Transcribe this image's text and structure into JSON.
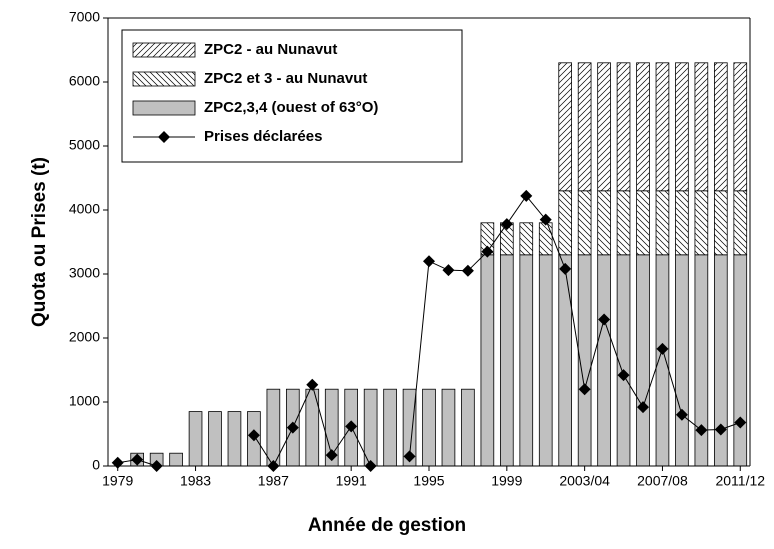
{
  "chart_data": {
    "type": "bar",
    "x_label": "Année de gestion",
    "y_label": "Quota ou Prises (t)",
    "categories": [
      "1979",
      null,
      null,
      null,
      "1983",
      null,
      null,
      null,
      "1987",
      null,
      null,
      null,
      "1991",
      null,
      null,
      null,
      "1995",
      null,
      null,
      null,
      "1999",
      null,
      null,
      null,
      "2003/04",
      null,
      null,
      null,
      "2007/08",
      null,
      null,
      null,
      "2011/12"
    ],
    "ylim": [
      0,
      7000
    ],
    "yticks": [
      0,
      1000,
      2000,
      3000,
      4000,
      5000,
      6000,
      7000
    ],
    "stacked": true,
    "series": [
      {
        "name": "ZPC2,3,4 (ouest of 63°O)",
        "color": "#c0c0c0",
        "pattern": "solid",
        "values": [
          0,
          200,
          200,
          200,
          850,
          850,
          850,
          850,
          1200,
          1200,
          1200,
          1200,
          1200,
          1200,
          1200,
          1200,
          1200,
          1200,
          1200,
          3300,
          3300,
          3300,
          3300,
          3300,
          3300,
          3300,
          3300,
          3300,
          3300,
          3300,
          3300,
          3300,
          3300
        ]
      },
      {
        "name": "ZPC2 et 3 - au Nunavut",
        "color": "#ffffff",
        "pattern": "backslash",
        "values": [
          0,
          0,
          0,
          0,
          0,
          0,
          0,
          0,
          0,
          0,
          0,
          0,
          0,
          0,
          0,
          0,
          0,
          0,
          0,
          500,
          500,
          500,
          500,
          1000,
          1000,
          1000,
          1000,
          1000,
          1000,
          1000,
          1000,
          1000,
          1000
        ]
      },
      {
        "name": "ZPC2 - au Nunavut",
        "color": "#ffffff",
        "pattern": "slash",
        "values": [
          0,
          0,
          0,
          0,
          0,
          0,
          0,
          0,
          0,
          0,
          0,
          0,
          0,
          0,
          0,
          0,
          0,
          0,
          0,
          0,
          0,
          0,
          0,
          2000,
          2000,
          2000,
          2000,
          2000,
          2000,
          2000,
          2000,
          2000,
          2000
        ]
      },
      {
        "name": "Prises déclarées",
        "type": "line",
        "color": "#000000",
        "values": [
          50,
          100,
          0,
          null,
          null,
          null,
          null,
          480,
          0,
          600,
          1270,
          170,
          620,
          0,
          null,
          150,
          3200,
          3060,
          3050,
          3350,
          3780,
          4220,
          3850,
          3080,
          1200,
          2290,
          1420,
          920,
          1830,
          800,
          560,
          570,
          680
        ]
      }
    ],
    "legend_order": [
      2,
      1,
      0,
      3
    ]
  }
}
